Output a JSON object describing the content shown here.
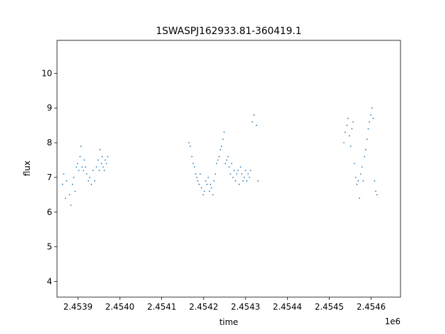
{
  "chart_data": {
    "type": "scatter",
    "title": "1SWASPJ162933.81-360419.1",
    "xlabel": "time",
    "ylabel": "flux",
    "x_offset_label": "1e6",
    "xlim": [
      2.45385,
      2.45467
    ],
    "ylim": [
      3.55,
      10.95
    ],
    "grid": false,
    "x_ticks": [
      2.4539,
      2.454,
      2.4541,
      2.4542,
      2.4543,
      2.4544,
      2.4545,
      2.4546
    ],
    "x_tick_labels": [
      "2.4539",
      "2.4540",
      "2.4541",
      "2.4542",
      "2.4543",
      "2.4544",
      "2.4545",
      "2.4546"
    ],
    "y_ticks": [
      4,
      5,
      6,
      7,
      8,
      9,
      10
    ],
    "y_tick_labels": [
      "4",
      "5",
      "6",
      "7",
      "8",
      "9",
      "10"
    ],
    "point_color": "#1f77b4",
    "series": [
      {
        "x": [
          2.453863,
          2.453866,
          2.45387,
          2.453873,
          2.45388,
          2.453883,
          2.453887,
          2.45389,
          2.453893,
          2.453896,
          2.453899,
          2.453902,
          2.453905,
          2.453907,
          2.45391,
          2.453913,
          2.453915,
          2.453918,
          2.453921,
          2.453925,
          2.453928,
          2.453932,
          2.453936,
          2.45394,
          2.453944,
          2.453948,
          2.453951,
          2.453953,
          2.453956,
          2.453958,
          2.45396,
          2.453963,
          2.453965,
          2.453968,
          2.453971,
          2.454165,
          2.454168,
          2.454172,
          2.454175,
          2.454178,
          2.454181,
          2.454184,
          2.454186,
          2.454189,
          2.454192,
          2.454195,
          2.454199,
          2.454202,
          2.454205,
          2.454208,
          2.454211,
          2.454214,
          2.454216,
          2.454219,
          2.454222,
          2.454225,
          2.454228,
          2.454231,
          2.454234,
          2.454237,
          2.45424,
          2.454243,
          2.454246,
          2.454249,
          2.454252,
          2.454255,
          2.454258,
          2.454261,
          2.454264,
          2.454267,
          2.45427,
          2.454273,
          2.454276,
          2.454279,
          2.454282,
          2.454285,
          2.454288,
          2.454291,
          2.454294,
          2.454297,
          2.4543,
          2.454303,
          2.454306,
          2.454309,
          2.454312,
          2.454316,
          2.45432,
          2.454326,
          2.45433,
          2.454535,
          2.454538,
          2.454542,
          2.454545,
          2.454548,
          2.454551,
          2.454554,
          2.454557,
          2.45456,
          2.454563,
          2.454566,
          2.454569,
          2.454572,
          2.454575,
          2.454578,
          2.454581,
          2.454584,
          2.454587,
          2.45459,
          2.454593,
          2.454596,
          2.454599,
          2.454602,
          2.454605,
          2.454608,
          2.454611,
          2.454614
        ],
        "y": [
          6.8,
          7.1,
          6.4,
          6.9,
          6.5,
          6.2,
          6.8,
          7.0,
          6.6,
          7.3,
          7.4,
          7.2,
          7.6,
          7.9,
          7.3,
          7.2,
          7.5,
          7.3,
          7.1,
          6.9,
          7.0,
          6.8,
          7.2,
          6.9,
          7.3,
          7.5,
          7.2,
          7.8,
          7.4,
          7.6,
          7.3,
          7.2,
          7.5,
          7.4,
          7.6,
          8.0,
          7.9,
          7.6,
          7.4,
          7.3,
          7.1,
          7.0,
          6.9,
          6.8,
          7.1,
          6.7,
          6.5,
          6.6,
          6.9,
          6.8,
          7.0,
          6.6,
          6.8,
          6.7,
          6.5,
          6.9,
          7.1,
          7.4,
          7.5,
          7.6,
          7.8,
          7.9,
          8.1,
          8.3,
          7.4,
          7.5,
          7.6,
          7.3,
          7.1,
          7.4,
          7.0,
          7.2,
          6.9,
          7.1,
          7.2,
          6.8,
          7.3,
          7.1,
          6.9,
          7.0,
          7.2,
          6.9,
          7.1,
          7.0,
          7.2,
          8.6,
          8.8,
          8.5,
          6.9,
          8.0,
          8.3,
          8.5,
          8.7,
          8.2,
          7.9,
          8.4,
          8.6,
          7.4,
          7.0,
          6.8,
          6.9,
          6.4,
          7.1,
          7.3,
          6.9,
          7.6,
          7.8,
          8.1,
          8.4,
          8.6,
          8.8,
          9.0,
          8.7,
          6.9,
          6.6,
          6.5
        ]
      }
    ]
  }
}
